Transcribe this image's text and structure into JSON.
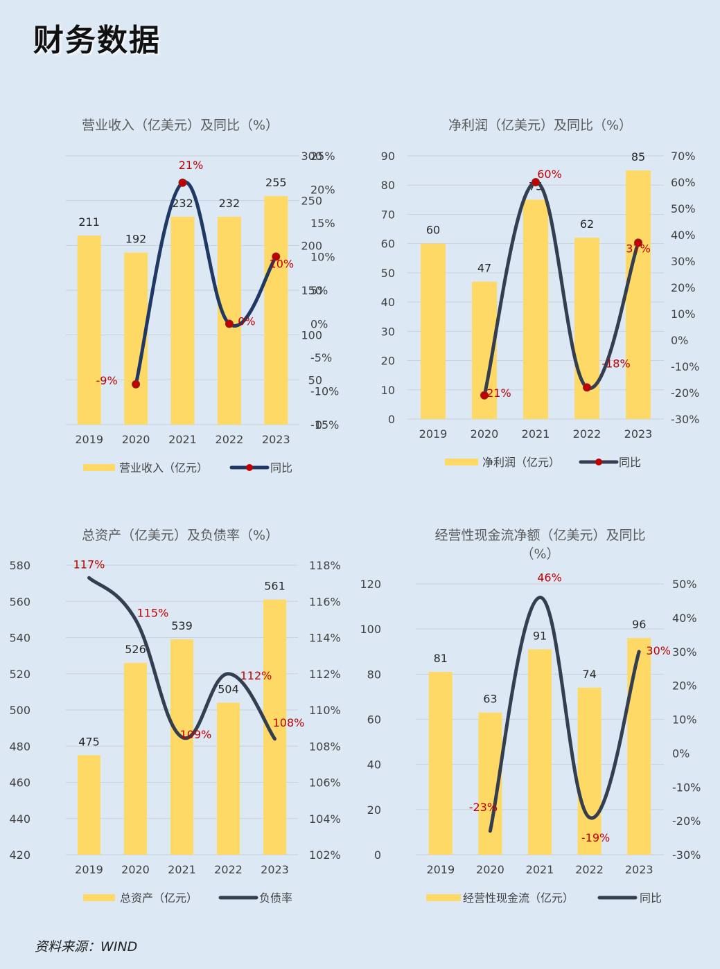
{
  "page": {
    "title": "财务数据",
    "source": "资料来源：WIND"
  },
  "colors": {
    "bar": "#ffd966",
    "line_navy": "#1f3864",
    "line_dark": "#333f50",
    "marker": "#c00000",
    "label_red": "#c00000",
    "grid": "#c9d1da",
    "text": "#404040"
  },
  "chart_data": [
    {
      "type": "bar",
      "title": "营业收入（亿美元）及同比（%）",
      "categories": [
        "2019",
        "2020",
        "2021",
        "2022",
        "2023"
      ],
      "series": [
        {
          "name": "营业收入（亿元）",
          "type": "bar",
          "values": [
            211,
            192,
            232,
            232,
            255
          ],
          "labels": [
            "211",
            "192",
            "232",
            "232",
            "255"
          ]
        },
        {
          "name": "同比",
          "type": "line",
          "axis": "right",
          "values": [
            null,
            -9,
            21,
            0,
            10
          ],
          "labels": [
            "",
            "-9%",
            "21%",
            "0%",
            "10%"
          ]
        }
      ],
      "ylim": [
        0,
        300
      ],
      "yticks": [
        "0",
        "50",
        "100",
        "150",
        "200",
        "250",
        "300"
      ],
      "y2lim": [
        -15,
        25
      ],
      "y2ticks": [
        "-15%",
        "-10%",
        "-5%",
        "0%",
        "5%",
        "10%",
        "15%",
        "20%",
        "25%"
      ],
      "line_color": "navy",
      "markers": true,
      "legend": "bottom",
      "grid": true
    },
    {
      "type": "bar",
      "title": "净利润（亿美元）及同比（%）",
      "categories": [
        "2019",
        "2020",
        "2021",
        "2022",
        "2023"
      ],
      "series": [
        {
          "name": "净利润（亿元）",
          "type": "bar",
          "values": [
            60,
            47,
            75,
            62,
            85
          ],
          "labels": [
            "60",
            "47",
            "75",
            "62",
            "85"
          ]
        },
        {
          "name": "同比",
          "type": "line",
          "axis": "right",
          "values": [
            null,
            -21,
            60,
            -18,
            37
          ],
          "labels": [
            "",
            "-21%",
            "60%",
            "-18%",
            "37%"
          ]
        }
      ],
      "ylim": [
        0,
        90
      ],
      "yticks": [
        "0",
        "10",
        "20",
        "30",
        "40",
        "50",
        "60",
        "70",
        "80",
        "90"
      ],
      "y2lim": [
        -30,
        70
      ],
      "y2ticks": [
        "-30%",
        "-20%",
        "-10%",
        "0%",
        "10%",
        "20%",
        "30%",
        "40%",
        "50%",
        "60%",
        "70%"
      ],
      "line_color": "dark",
      "markers": true,
      "legend": "bottom",
      "grid": true
    },
    {
      "type": "bar",
      "title": "总资产（亿美元）及负债率（%）",
      "categories": [
        "2019",
        "2020",
        "2021",
        "2022",
        "2023"
      ],
      "series": [
        {
          "name": "总资产（亿元）",
          "type": "bar",
          "values": [
            475,
            526,
            539,
            504,
            561
          ],
          "labels": [
            "475",
            "526",
            "539",
            "504",
            "561"
          ]
        },
        {
          "name": "负债率",
          "type": "line",
          "axis": "right",
          "values": [
            117.3,
            115,
            108.5,
            112,
            108.4
          ],
          "labels": [
            "117%",
            "115%",
            "109%",
            "112%",
            "108%"
          ]
        }
      ],
      "ylim": [
        420,
        580
      ],
      "yticks": [
        "420",
        "440",
        "460",
        "480",
        "500",
        "520",
        "540",
        "560",
        "580"
      ],
      "y2lim": [
        102,
        118
      ],
      "y2ticks": [
        "102%",
        "104%",
        "106%",
        "108%",
        "110%",
        "112%",
        "114%",
        "116%",
        "118%"
      ],
      "line_color": "dark",
      "markers": false,
      "legend": "bottom",
      "grid": true
    },
    {
      "type": "bar",
      "title": "经营性现金流净额（亿美元）及同比（%）",
      "title_lines": [
        "经营性现金流净额（亿美元）及同比",
        "（%）"
      ],
      "categories": [
        "2019",
        "2020",
        "2021",
        "2022",
        "2023"
      ],
      "series": [
        {
          "name": "经营性现金流（亿元）",
          "type": "bar",
          "values": [
            81,
            63,
            91,
            74,
            96
          ],
          "labels": [
            "81",
            "63",
            "91",
            "74",
            "96"
          ]
        },
        {
          "name": "同比",
          "type": "line",
          "axis": "right",
          "values": [
            null,
            -23,
            46,
            -19,
            30
          ],
          "labels": [
            "",
            "-23%",
            "46%",
            "-19%",
            "30%"
          ]
        }
      ],
      "ylim": [
        0,
        120
      ],
      "yticks": [
        "0",
        "20",
        "40",
        "60",
        "80",
        "100",
        "120"
      ],
      "y2lim": [
        -30,
        50
      ],
      "y2ticks": [
        "-30%",
        "-20%",
        "-10%",
        "0%",
        "10%",
        "20%",
        "30%",
        "40%",
        "50%"
      ],
      "line_color": "dark",
      "markers": false,
      "legend": "bottom",
      "grid": true
    }
  ]
}
